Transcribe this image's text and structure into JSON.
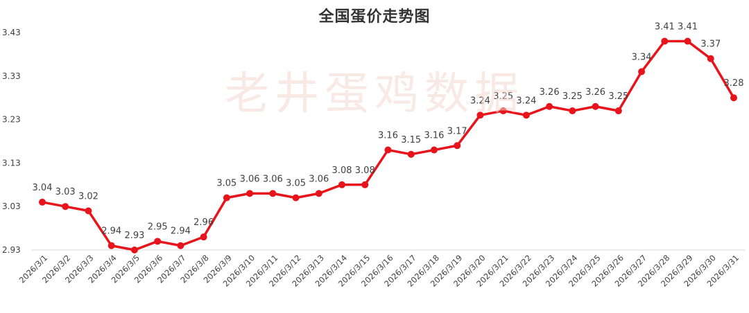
{
  "chart_data": {
    "type": "line",
    "title": "全国蛋价走势图",
    "xlabel": "",
    "ylabel": "",
    "ylim": [
      2.93,
      3.43
    ],
    "yticks": [
      "2.93",
      "3.03",
      "3.13",
      "3.23",
      "3.33",
      "3.43"
    ],
    "grid": false,
    "legend": "none",
    "categories": [
      "2026/3/1",
      "2026/3/2",
      "2026/3/3",
      "2026/3/4",
      "2026/3/5",
      "2026/3/6",
      "2026/3/7",
      "2026/3/8",
      "2026/3/9",
      "2026/3/10",
      "2026/3/11",
      "2026/3/12",
      "2026/3/13",
      "2026/3/14",
      "2026/3/15",
      "2026/3/16",
      "2026/3/17",
      "2026/3/18",
      "2026/3/19",
      "2026/3/20",
      "2026/3/21",
      "2026/3/22",
      "2026/3/23",
      "2026/3/24",
      "2026/3/25",
      "2026/3/26",
      "2026/3/27",
      "2026/3/28",
      "2026/3/29",
      "2026/3/30",
      "2026/3/31"
    ],
    "series": [
      {
        "values": [
          3.04,
          3.03,
          3.02,
          2.94,
          2.93,
          2.95,
          2.94,
          2.96,
          3.05,
          3.06,
          3.06,
          3.05,
          3.06,
          3.08,
          3.08,
          3.16,
          3.15,
          3.16,
          3.17,
          3.24,
          3.25,
          3.24,
          3.26,
          3.25,
          3.26,
          3.25,
          3.34,
          3.41,
          3.41,
          3.37,
          3.28
        ],
        "labels": [
          "3.04",
          "3.03",
          "3.02",
          "2.94",
          "2.93",
          "2.95",
          "2.94",
          "2.96",
          "3.05",
          "3.06",
          "3.06",
          "3.05",
          "3.06",
          "3.08",
          "3.08",
          "3.16",
          "3.15",
          "3.16",
          "3.17",
          "3.24",
          "3.25",
          "3.24",
          "3.26",
          "3.25",
          "3.26",
          "3.25",
          "3.34",
          "3.41",
          "3.41",
          "3.37",
          "3.28"
        ],
        "color": "#e8141b"
      }
    ],
    "watermark": "老井蛋鸡数据",
    "colors": {
      "line": "#e8141b",
      "axis": "#d9d9d9",
      "text": "#404040",
      "title": "#333333",
      "watermark": "#f3d8cf"
    }
  }
}
